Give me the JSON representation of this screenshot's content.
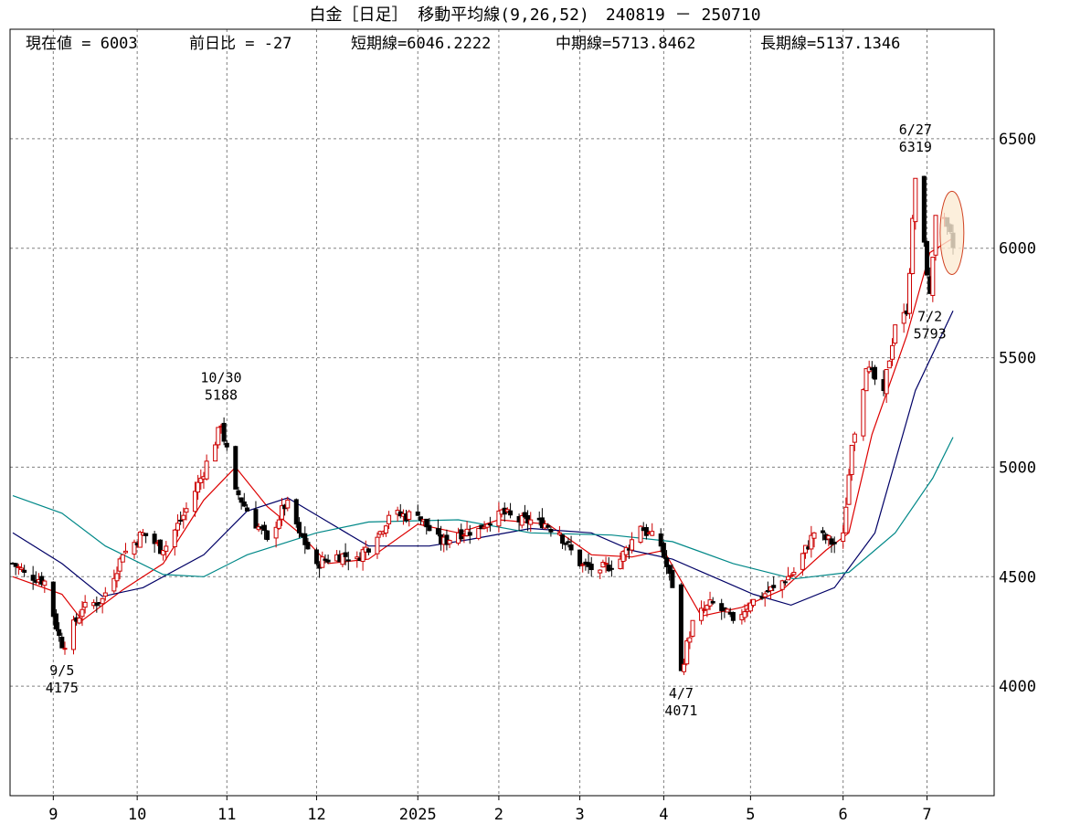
{
  "title": "白金［日足］ 移動平均線(9,26,52)　240819 － 250710",
  "stats": {
    "current": "現在値 = 6003",
    "change": "前日比 = -27",
    "short_ma": "短期線=6046.2222",
    "mid_ma": "中期線=5713.8462",
    "long_ma": "長期線=5137.1346"
  },
  "chart_data": {
    "type": "candlestick",
    "title": "白金［日足］ 移動平均線(9,26,52)　240819 － 250710",
    "xlabel": "",
    "ylabel": "",
    "ylim": [
      3500,
      7000
    ],
    "y_ticks": [
      4000,
      4500,
      5000,
      5500,
      6000,
      6500
    ],
    "x_ticks": [
      {
        "label": "9",
        "date": "2024-09-02"
      },
      {
        "label": "10",
        "date": "2024-10-01"
      },
      {
        "label": "11",
        "date": "2024-11-01"
      },
      {
        "label": "12",
        "date": "2024-12-02"
      },
      {
        "label": "2025",
        "date": "2025-01-06"
      },
      {
        "label": "2",
        "date": "2025-02-03"
      },
      {
        "label": "3",
        "date": "2025-03-03"
      },
      {
        "label": "4",
        "date": "2025-04-01"
      },
      {
        "label": "5",
        "date": "2025-05-01"
      },
      {
        "label": "6",
        "date": "2025-06-02"
      },
      {
        "label": "7",
        "date": "2025-07-01"
      }
    ],
    "x_range": [
      "2024-08-19",
      "2025-07-10"
    ],
    "grid": true,
    "price_path": [
      [
        "2024-08-19",
        4560
      ],
      [
        "2024-08-23",
        4520
      ],
      [
        "2024-08-30",
        4480
      ],
      [
        "2024-09-05",
        4175
      ],
      [
        "2024-09-12",
        4350
      ],
      [
        "2024-09-19",
        4400
      ],
      [
        "2024-09-26",
        4600
      ],
      [
        "2024-10-03",
        4700
      ],
      [
        "2024-10-10",
        4620
      ],
      [
        "2024-10-17",
        4780
      ],
      [
        "2024-10-23",
        4950
      ],
      [
        "2024-10-30",
        5188
      ],
      [
        "2024-11-04",
        4900
      ],
      [
        "2024-11-08",
        4800
      ],
      [
        "2024-11-15",
        4670
      ],
      [
        "2024-11-22",
        4850
      ],
      [
        "2024-11-26",
        4700
      ],
      [
        "2024-12-02",
        4560
      ],
      [
        "2024-12-09",
        4600
      ],
      [
        "2024-12-16",
        4590
      ],
      [
        "2024-12-23",
        4680
      ],
      [
        "2024-12-27",
        4780
      ],
      [
        "2025-01-06",
        4780
      ],
      [
        "2025-01-14",
        4650
      ],
      [
        "2025-01-20",
        4700
      ],
      [
        "2025-01-27",
        4720
      ],
      [
        "2025-02-03",
        4800
      ],
      [
        "2025-02-10",
        4750
      ],
      [
        "2025-02-17",
        4760
      ],
      [
        "2025-02-24",
        4700
      ],
      [
        "2025-03-03",
        4550
      ],
      [
        "2025-03-10",
        4530
      ],
      [
        "2025-03-17",
        4580
      ],
      [
        "2025-03-24",
        4730
      ],
      [
        "2025-03-31",
        4640
      ],
      [
        "2025-04-04",
        4450
      ],
      [
        "2025-04-07",
        4071
      ],
      [
        "2025-04-11",
        4300
      ],
      [
        "2025-04-18",
        4380
      ],
      [
        "2025-04-25",
        4300
      ],
      [
        "2025-05-01",
        4380
      ],
      [
        "2025-05-09",
        4450
      ],
      [
        "2025-05-16",
        4520
      ],
      [
        "2025-05-23",
        4700
      ],
      [
        "2025-05-30",
        4650
      ],
      [
        "2025-06-02",
        4700
      ],
      [
        "2025-06-05",
        5100
      ],
      [
        "2025-06-10",
        5450
      ],
      [
        "2025-06-16",
        5350
      ],
      [
        "2025-06-20",
        5650
      ],
      [
        "2025-06-24",
        5700
      ],
      [
        "2025-06-27",
        6319
      ],
      [
        "2025-07-02",
        5793
      ],
      [
        "2025-07-04",
        6150
      ],
      [
        "2025-07-08",
        6100
      ],
      [
        "2025-07-10",
        6003
      ]
    ],
    "series": [
      {
        "name": "短期線",
        "period": 9,
        "color": "#dd0000",
        "points": [
          [
            "2024-08-19",
            4500
          ],
          [
            "2024-09-05",
            4420
          ],
          [
            "2024-09-12",
            4300
          ],
          [
            "2024-09-26",
            4440
          ],
          [
            "2024-10-10",
            4560
          ],
          [
            "2024-10-24",
            4850
          ],
          [
            "2024-11-04",
            5000
          ],
          [
            "2024-11-15",
            4820
          ],
          [
            "2024-11-26",
            4700
          ],
          [
            "2024-12-06",
            4560
          ],
          [
            "2024-12-20",
            4580
          ],
          [
            "2025-01-06",
            4740
          ],
          [
            "2025-01-20",
            4700
          ],
          [
            "2025-02-03",
            4760
          ],
          [
            "2025-02-20",
            4740
          ],
          [
            "2025-03-07",
            4600
          ],
          [
            "2025-03-21",
            4590
          ],
          [
            "2025-04-01",
            4620
          ],
          [
            "2025-04-14",
            4320
          ],
          [
            "2025-04-28",
            4360
          ],
          [
            "2025-05-12",
            4440
          ],
          [
            "2025-05-27",
            4620
          ],
          [
            "2025-06-04",
            4700
          ],
          [
            "2025-06-12",
            5150
          ],
          [
            "2025-06-24",
            5600
          ],
          [
            "2025-07-02",
            5980
          ],
          [
            "2025-07-10",
            6046.2222
          ]
        ]
      },
      {
        "name": "中期線",
        "period": 26,
        "color": "#000066",
        "points": [
          [
            "2024-08-19",
            4700
          ],
          [
            "2024-09-05",
            4560
          ],
          [
            "2024-09-19",
            4410
          ],
          [
            "2024-10-03",
            4450
          ],
          [
            "2024-10-24",
            4600
          ],
          [
            "2024-11-08",
            4800
          ],
          [
            "2024-11-22",
            4860
          ],
          [
            "2024-12-06",
            4750
          ],
          [
            "2024-12-20",
            4640
          ],
          [
            "2025-01-10",
            4640
          ],
          [
            "2025-01-24",
            4670
          ],
          [
            "2025-02-14",
            4720
          ],
          [
            "2025-03-07",
            4700
          ],
          [
            "2025-03-21",
            4620
          ],
          [
            "2025-04-04",
            4580
          ],
          [
            "2025-04-18",
            4500
          ],
          [
            "2025-05-02",
            4420
          ],
          [
            "2025-05-15",
            4370
          ],
          [
            "2025-05-30",
            4450
          ],
          [
            "2025-06-13",
            4700
          ],
          [
            "2025-06-27",
            5350
          ],
          [
            "2025-07-10",
            5713.8462
          ]
        ]
      },
      {
        "name": "長期線",
        "period": 52,
        "color": "#008888",
        "points": [
          [
            "2024-08-19",
            4870
          ],
          [
            "2024-09-05",
            4790
          ],
          [
            "2024-09-20",
            4640
          ],
          [
            "2024-10-10",
            4510
          ],
          [
            "2024-10-24",
            4500
          ],
          [
            "2024-11-08",
            4600
          ],
          [
            "2024-12-02",
            4700
          ],
          [
            "2024-12-20",
            4750
          ],
          [
            "2025-01-20",
            4760
          ],
          [
            "2025-02-14",
            4700
          ],
          [
            "2025-03-14",
            4690
          ],
          [
            "2025-04-04",
            4660
          ],
          [
            "2025-04-25",
            4560
          ],
          [
            "2025-05-16",
            4490
          ],
          [
            "2025-06-04",
            4520
          ],
          [
            "2025-06-20",
            4700
          ],
          [
            "2025-07-03",
            4950
          ],
          [
            "2025-07-10",
            5137.1346
          ]
        ]
      }
    ],
    "annotations": [
      {
        "date_label": "9/5",
        "value_label": "4175",
        "date": "2024-09-05",
        "value": 4175,
        "kind": "low"
      },
      {
        "date_label": "10/30",
        "value_label": "5188",
        "date": "2024-10-30",
        "value": 5188,
        "kind": "high"
      },
      {
        "date_label": "4/7",
        "value_label": "4071",
        "date": "2025-04-07",
        "value": 4071,
        "kind": "low"
      },
      {
        "date_label": "6/27",
        "value_label": "6319",
        "date": "2025-06-27",
        "value": 6319,
        "kind": "high"
      },
      {
        "date_label": "7/2",
        "value_label": "5793",
        "date": "2025-07-02",
        "value": 5793,
        "kind": "low"
      }
    ],
    "highlight": {
      "date": "2025-07-09",
      "value_from": 5880,
      "value_to": 6260,
      "shape": "ellipse",
      "fill": "#fbebd3",
      "stroke": "#d04020"
    }
  },
  "colors": {
    "up_candle_fill": "#ffffff",
    "up_candle_stroke": "#cc0000",
    "down_candle": "#000000",
    "grid": "#808080"
  }
}
